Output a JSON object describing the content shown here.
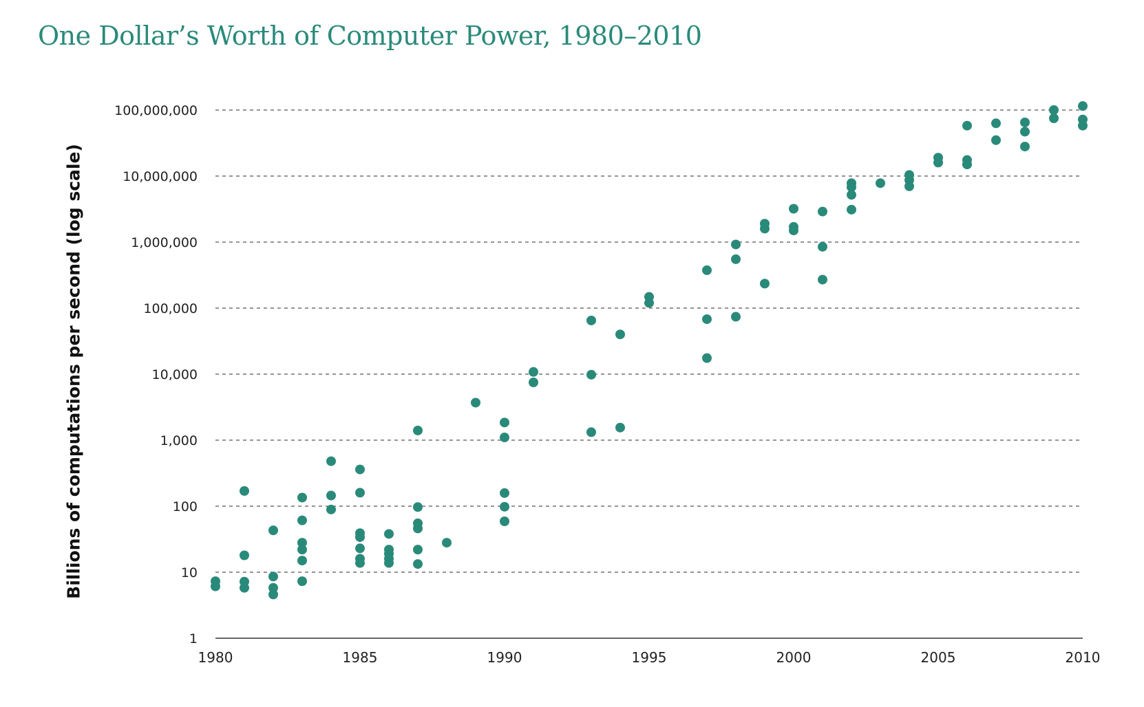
{
  "chart_data": {
    "type": "scatter",
    "title": "One Dollar’s Worth of Computer Power, 1980–2010",
    "xlabel": "",
    "ylabel": "Billions of computations per second (log scale)",
    "y_scale": "log",
    "xlim": [
      1980,
      2010
    ],
    "ylim": [
      1,
      100000000
    ],
    "x_ticks": [
      "1980",
      "1985",
      "1990",
      "1995",
      "2000",
      "2005",
      "2010"
    ],
    "y_ticks": [
      "1",
      "10",
      "100",
      "1,000",
      "10,000",
      "100,000",
      "1,000,000",
      "10,000,000",
      "100,000,000"
    ],
    "grid": "horizontal dashed",
    "color": "#2a8a7a",
    "points": [
      {
        "x": 1980,
        "y": 7.3
      },
      {
        "x": 1980,
        "y": 6.1
      },
      {
        "x": 1981,
        "y": 170
      },
      {
        "x": 1981,
        "y": 18
      },
      {
        "x": 1981,
        "y": 7.2
      },
      {
        "x": 1981,
        "y": 5.8
      },
      {
        "x": 1982,
        "y": 43
      },
      {
        "x": 1982,
        "y": 8.6
      },
      {
        "x": 1982,
        "y": 5.8
      },
      {
        "x": 1982,
        "y": 4.6
      },
      {
        "x": 1983,
        "y": 135
      },
      {
        "x": 1983,
        "y": 61
      },
      {
        "x": 1983,
        "y": 28
      },
      {
        "x": 1983,
        "y": 22
      },
      {
        "x": 1983,
        "y": 15
      },
      {
        "x": 1983,
        "y": 7.3
      },
      {
        "x": 1984,
        "y": 480
      },
      {
        "x": 1984,
        "y": 145
      },
      {
        "x": 1984,
        "y": 89
      },
      {
        "x": 1985,
        "y": 360
      },
      {
        "x": 1985,
        "y": 160
      },
      {
        "x": 1985,
        "y": 39
      },
      {
        "x": 1985,
        "y": 34
      },
      {
        "x": 1985,
        "y": 23
      },
      {
        "x": 1985,
        "y": 16
      },
      {
        "x": 1985,
        "y": 13.8
      },
      {
        "x": 1986,
        "y": 38
      },
      {
        "x": 1986,
        "y": 22
      },
      {
        "x": 1986,
        "y": 19
      },
      {
        "x": 1986,
        "y": 16
      },
      {
        "x": 1986,
        "y": 13.8
      },
      {
        "x": 1987,
        "y": 1400
      },
      {
        "x": 1987,
        "y": 97
      },
      {
        "x": 1987,
        "y": 55
      },
      {
        "x": 1987,
        "y": 46
      },
      {
        "x": 1987,
        "y": 22
      },
      {
        "x": 1987,
        "y": 13.3
      },
      {
        "x": 1988,
        "y": 28
      },
      {
        "x": 1989,
        "y": 3700
      },
      {
        "x": 1990,
        "y": 1850
      },
      {
        "x": 1990,
        "y": 1100
      },
      {
        "x": 1990,
        "y": 158
      },
      {
        "x": 1990,
        "y": 98
      },
      {
        "x": 1990,
        "y": 59
      },
      {
        "x": 1991,
        "y": 10800
      },
      {
        "x": 1991,
        "y": 7500
      },
      {
        "x": 1993,
        "y": 65000
      },
      {
        "x": 1993,
        "y": 9800
      },
      {
        "x": 1993,
        "y": 1320
      },
      {
        "x": 1994,
        "y": 40000
      },
      {
        "x": 1994,
        "y": 1550
      },
      {
        "x": 1995,
        "y": 148000
      },
      {
        "x": 1995,
        "y": 120000
      },
      {
        "x": 1997,
        "y": 375000
      },
      {
        "x": 1997,
        "y": 68000
      },
      {
        "x": 1997,
        "y": 17500
      },
      {
        "x": 1998,
        "y": 920000
      },
      {
        "x": 1998,
        "y": 550000
      },
      {
        "x": 1998,
        "y": 74000
      },
      {
        "x": 1999,
        "y": 1900000
      },
      {
        "x": 1999,
        "y": 1600000
      },
      {
        "x": 1999,
        "y": 235000
      },
      {
        "x": 2000,
        "y": 3200000
      },
      {
        "x": 2000,
        "y": 1700000
      },
      {
        "x": 2000,
        "y": 1500000
      },
      {
        "x": 2001,
        "y": 2900000
      },
      {
        "x": 2001,
        "y": 850000
      },
      {
        "x": 2001,
        "y": 270000
      },
      {
        "x": 2002,
        "y": 7800000
      },
      {
        "x": 2002,
        "y": 6800000
      },
      {
        "x": 2002,
        "y": 5200000
      },
      {
        "x": 2002,
        "y": 3100000
      },
      {
        "x": 2003,
        "y": 7800000
      },
      {
        "x": 2004,
        "y": 10400000
      },
      {
        "x": 2004,
        "y": 8700000
      },
      {
        "x": 2004,
        "y": 7000000
      },
      {
        "x": 2005,
        "y": 19000000
      },
      {
        "x": 2005,
        "y": 16000000
      },
      {
        "x": 2006,
        "y": 58000000
      },
      {
        "x": 2006,
        "y": 17500000
      },
      {
        "x": 2006,
        "y": 15000000
      },
      {
        "x": 2007,
        "y": 63000000
      },
      {
        "x": 2007,
        "y": 35000000
      },
      {
        "x": 2008,
        "y": 65000000
      },
      {
        "x": 2008,
        "y": 47000000
      },
      {
        "x": 2008,
        "y": 28000000
      },
      {
        "x": 2009,
        "y": 100000000
      },
      {
        "x": 2009,
        "y": 75000000
      },
      {
        "x": 2010,
        "y": 115000000
      },
      {
        "x": 2010,
        "y": 72000000
      },
      {
        "x": 2010,
        "y": 58000000
      }
    ]
  }
}
